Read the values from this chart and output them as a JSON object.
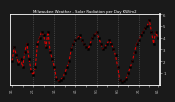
{
  "title": "Milwaukee Weather - Solar Radiation per Day KW/m2",
  "bg_color": "#1a1a1a",
  "fig_bg_color": "#2a2a2a",
  "line_color": "#dd0000",
  "marker_color": "#000000",
  "grid_color": "#666666",
  "axis_label_color": "#ffffff",
  "tick_label_color": "#cccccc",
  "spine_color": "#ffffff",
  "y_min": 0,
  "y_max": 6,
  "y_ticks": [
    1,
    2,
    3,
    4,
    5,
    6
  ],
  "x_values": [
    0,
    1,
    2,
    3,
    4,
    5,
    6,
    7,
    8,
    9,
    10,
    11,
    12,
    13,
    14,
    15,
    16,
    17,
    18,
    19,
    20,
    21,
    22,
    23,
    24,
    25,
    26,
    27,
    28,
    29,
    30,
    31,
    32,
    33,
    34,
    35,
    36,
    37,
    38,
    39,
    40,
    41,
    42,
    43,
    44,
    45,
    46,
    47,
    48,
    49,
    50,
    51,
    52,
    53,
    54,
    55,
    56,
    57,
    58,
    59,
    60,
    61,
    62,
    63,
    64,
    65,
    66,
    67,
    68,
    69
  ],
  "y_values": [
    2.0,
    3.2,
    2.5,
    1.8,
    2.2,
    1.5,
    2.8,
    3.5,
    2.2,
    1.2,
    0.8,
    1.5,
    3.5,
    4.0,
    4.5,
    4.2,
    3.2,
    4.5,
    2.8,
    2.2,
    1.5,
    0.5,
    0.3,
    0.4,
    0.6,
    1.0,
    1.5,
    2.0,
    3.0,
    3.5,
    3.8,
    4.0,
    4.2,
    3.8,
    3.5,
    3.2,
    3.0,
    3.5,
    4.0,
    4.2,
    4.5,
    4.0,
    3.5,
    3.0,
    3.2,
    3.5,
    3.8,
    3.5,
    3.0,
    2.5,
    1.5,
    0.4,
    0.2,
    0.3,
    0.5,
    1.0,
    1.5,
    2.0,
    2.8,
    3.5,
    3.8,
    4.2,
    4.5,
    4.8,
    5.0,
    5.5,
    4.5,
    3.5,
    4.5,
    4.0
  ],
  "vline_positions": [
    10,
    20,
    30,
    40,
    50,
    60
  ],
  "x_tick_positions": [
    0,
    5,
    10,
    15,
    20,
    25,
    30,
    35,
    40,
    45,
    50,
    55,
    60,
    65,
    69
  ],
  "x_tick_labels": [
    "1/1",
    "",
    "2/1",
    "",
    "3/1",
    "",
    "4/1",
    "",
    "5/1",
    "",
    "6/1",
    "",
    "7/1",
    "",
    "8/1"
  ]
}
